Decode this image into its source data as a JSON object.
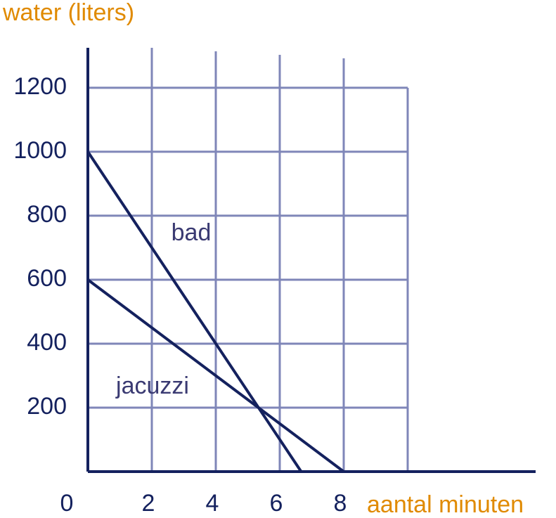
{
  "chart_data": {
    "type": "line",
    "y_label": "water (liters)",
    "x_label": "aantal minuten",
    "series": [
      {
        "name": "bad",
        "color": "#14215e",
        "x": [
          0,
          6.67
        ],
        "values": [
          1000,
          0
        ]
      },
      {
        "name": "jacuzzi",
        "color": "#14215e",
        "x": [
          0,
          8
        ],
        "values": [
          600,
          0
        ]
      }
    ],
    "xlim": [
      0,
      14
    ],
    "ylim": [
      0,
      1325
    ],
    "xticks": [
      0,
      2,
      4,
      6,
      8
    ],
    "yticks": [
      200,
      400,
      600,
      800,
      1000,
      1200
    ],
    "xgrid": [
      2,
      4,
      6,
      8,
      10
    ],
    "grid": true,
    "grid_color": "#7f86b8",
    "axis_color": "#14215e",
    "label_color": "#e08a00"
  }
}
